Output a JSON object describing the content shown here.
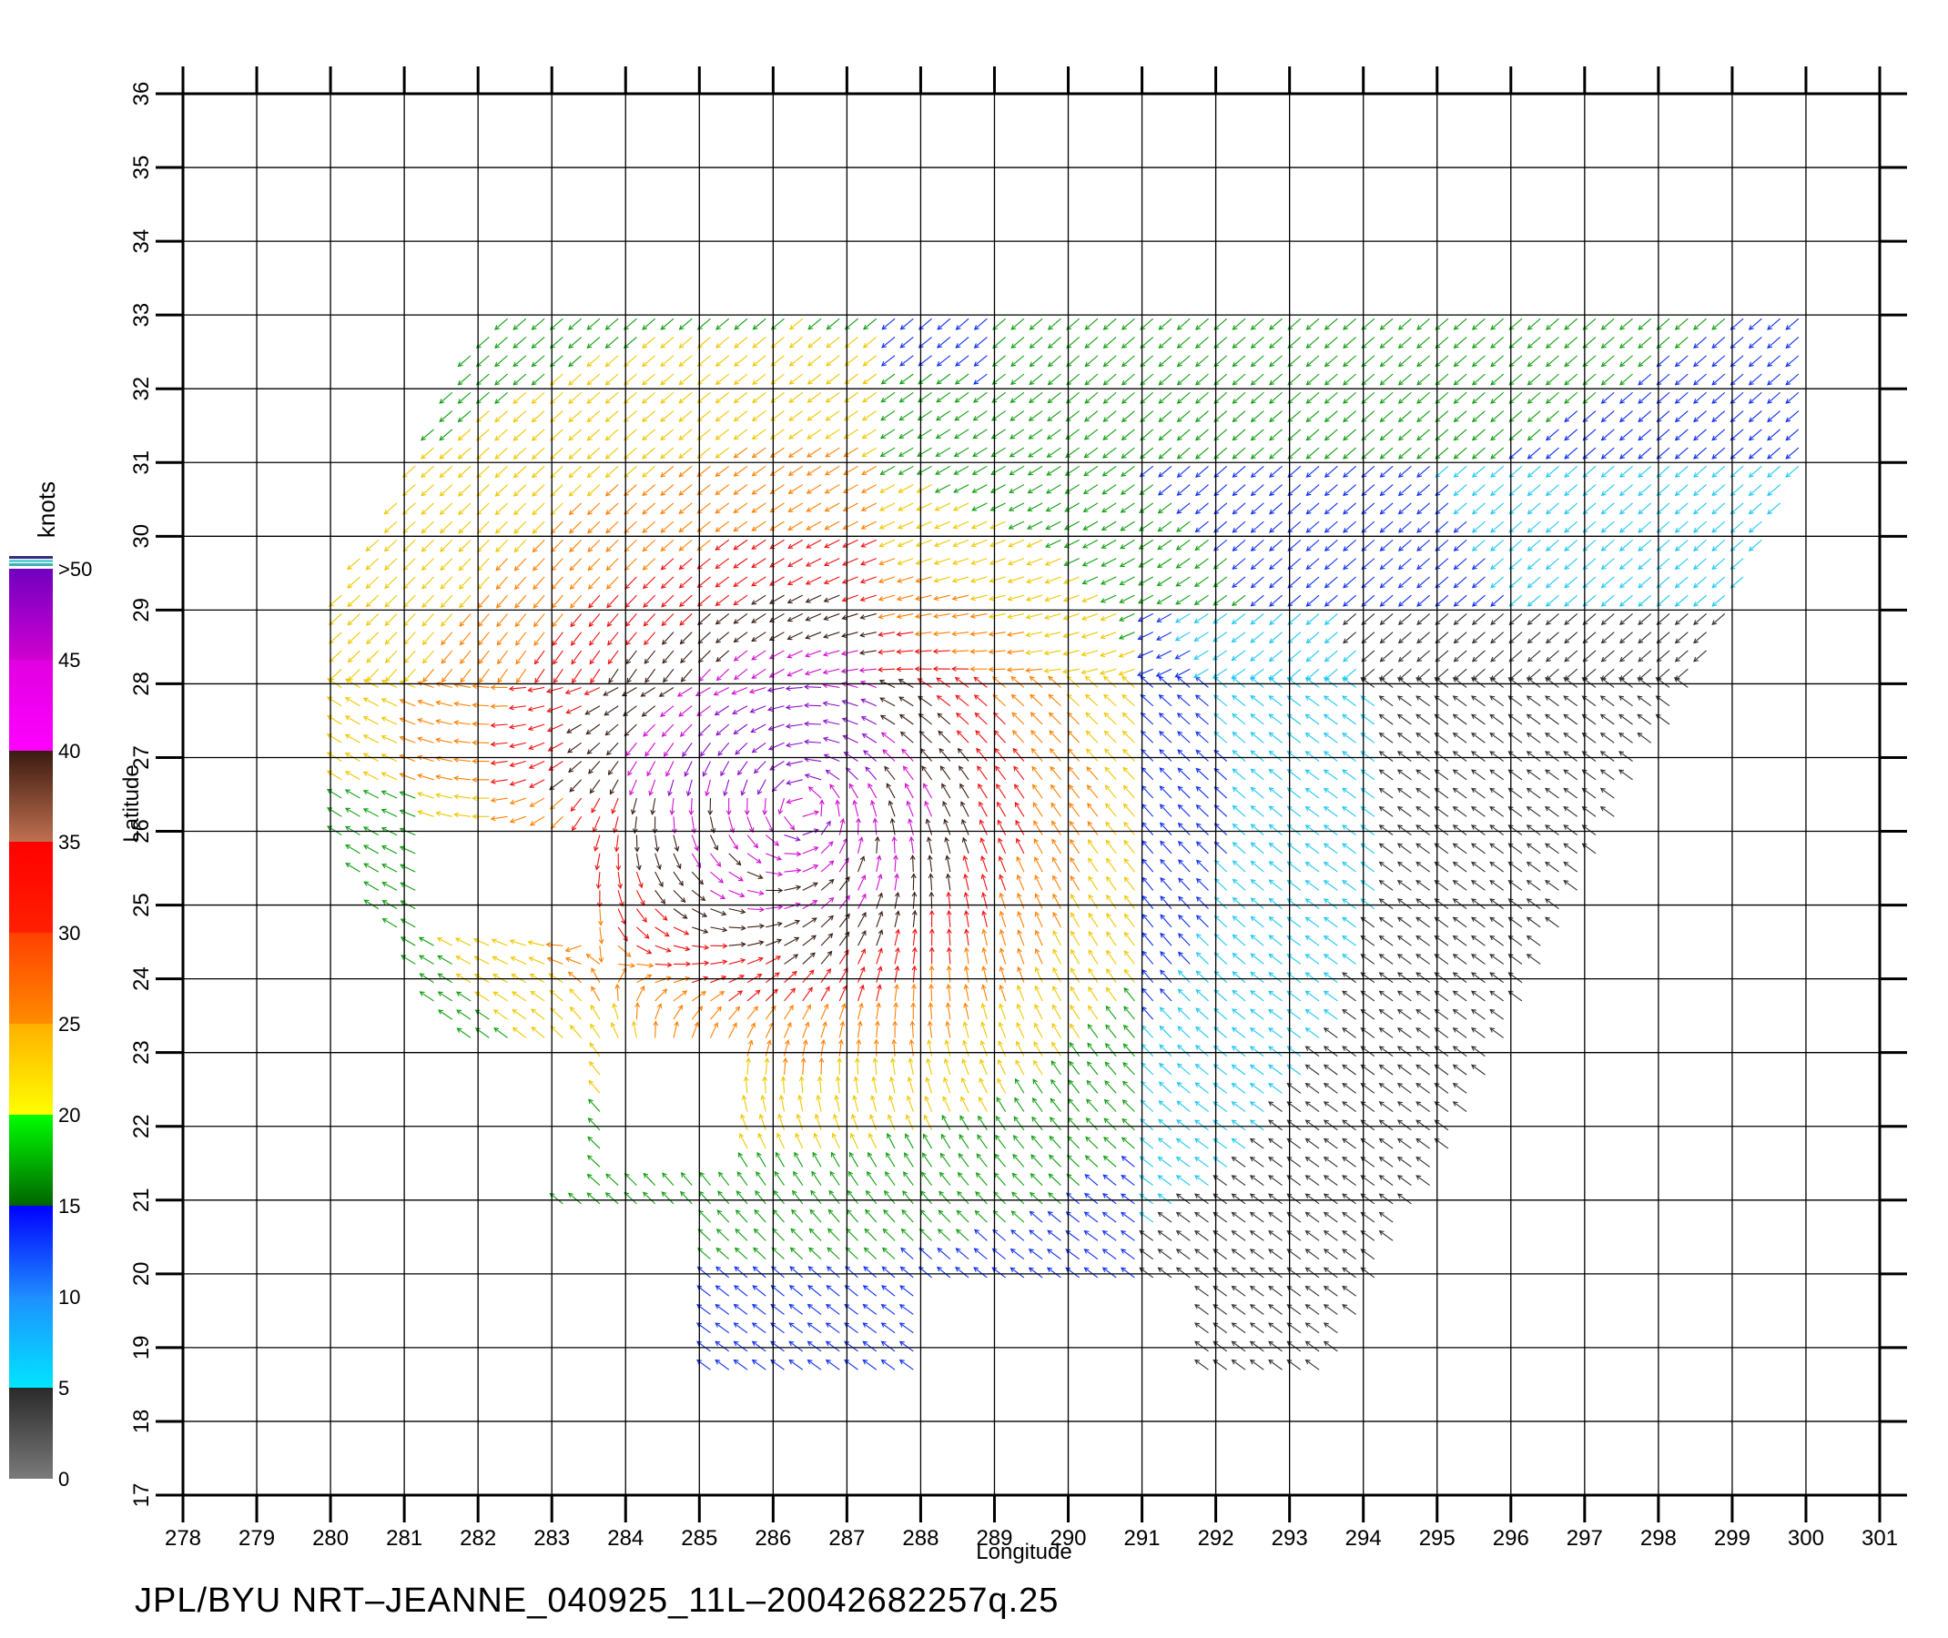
{
  "chart_data": {
    "type": "vector-field",
    "xlabel": "Longitude",
    "ylabel": "Latitude",
    "xlim": [
      278,
      301
    ],
    "ylim": [
      17,
      36
    ],
    "x_ticks": [
      278,
      279,
      280,
      281,
      282,
      283,
      284,
      285,
      286,
      287,
      288,
      289,
      290,
      291,
      292,
      293,
      294,
      295,
      296,
      297,
      298,
      299,
      300,
      301
    ],
    "y_ticks": [
      17,
      18,
      19,
      20,
      21,
      22,
      23,
      24,
      25,
      26,
      27,
      28,
      29,
      30,
      31,
      32,
      33,
      34,
      35,
      36
    ],
    "grid": true,
    "storm_center": {
      "lon": 286.4,
      "lat": 26.3
    },
    "colorbar": {
      "title": "knots",
      "labels": [
        "0",
        "5",
        "10",
        "15",
        "20",
        "25",
        "30",
        "35",
        "40",
        "45",
        ">50"
      ],
      "bins": [
        {
          "range": "0-5",
          "colors": [
            "#7a7a7a",
            "#2a2a2a"
          ]
        },
        {
          "range": "5-10",
          "colors": [
            "#00e5ff",
            "#1e90ff"
          ]
        },
        {
          "range": "10-15",
          "colors": [
            "#1e8cff",
            "#0000ff"
          ]
        },
        {
          "range": "15-20",
          "colors": [
            "#006400",
            "#00ff00"
          ]
        },
        {
          "range": "20-25",
          "colors": [
            "#ffff00",
            "#ffb000"
          ]
        },
        {
          "range": "25-30",
          "colors": [
            "#ff8c00",
            "#ff4000"
          ]
        },
        {
          "range": "30-35",
          "colors": [
            "#ff2000",
            "#ff0000"
          ]
        },
        {
          "range": "35-40",
          "colors": [
            "#c07050",
            "#3a1a10"
          ]
        },
        {
          "range": "40-45",
          "colors": [
            "#ff00ff",
            "#e000e0"
          ]
        },
        {
          "range": "45-50",
          "colors": [
            "#d000d0",
            "#7000c0"
          ]
        }
      ]
    },
    "speed_regions": [
      {
        "area": "eyewall",
        "knots": "40-50"
      },
      {
        "area": "northwest quadrant",
        "knots": "25-35"
      },
      {
        "area": "northeast",
        "knots": "15-20"
      },
      {
        "area": "east and southeast",
        "knots": "5-15"
      },
      {
        "area": "south",
        "knots": "15-25"
      }
    ]
  },
  "footer": {
    "text": "JPL/BYU  NRT–JEANNE_040925_11L–20042682257q.25"
  }
}
